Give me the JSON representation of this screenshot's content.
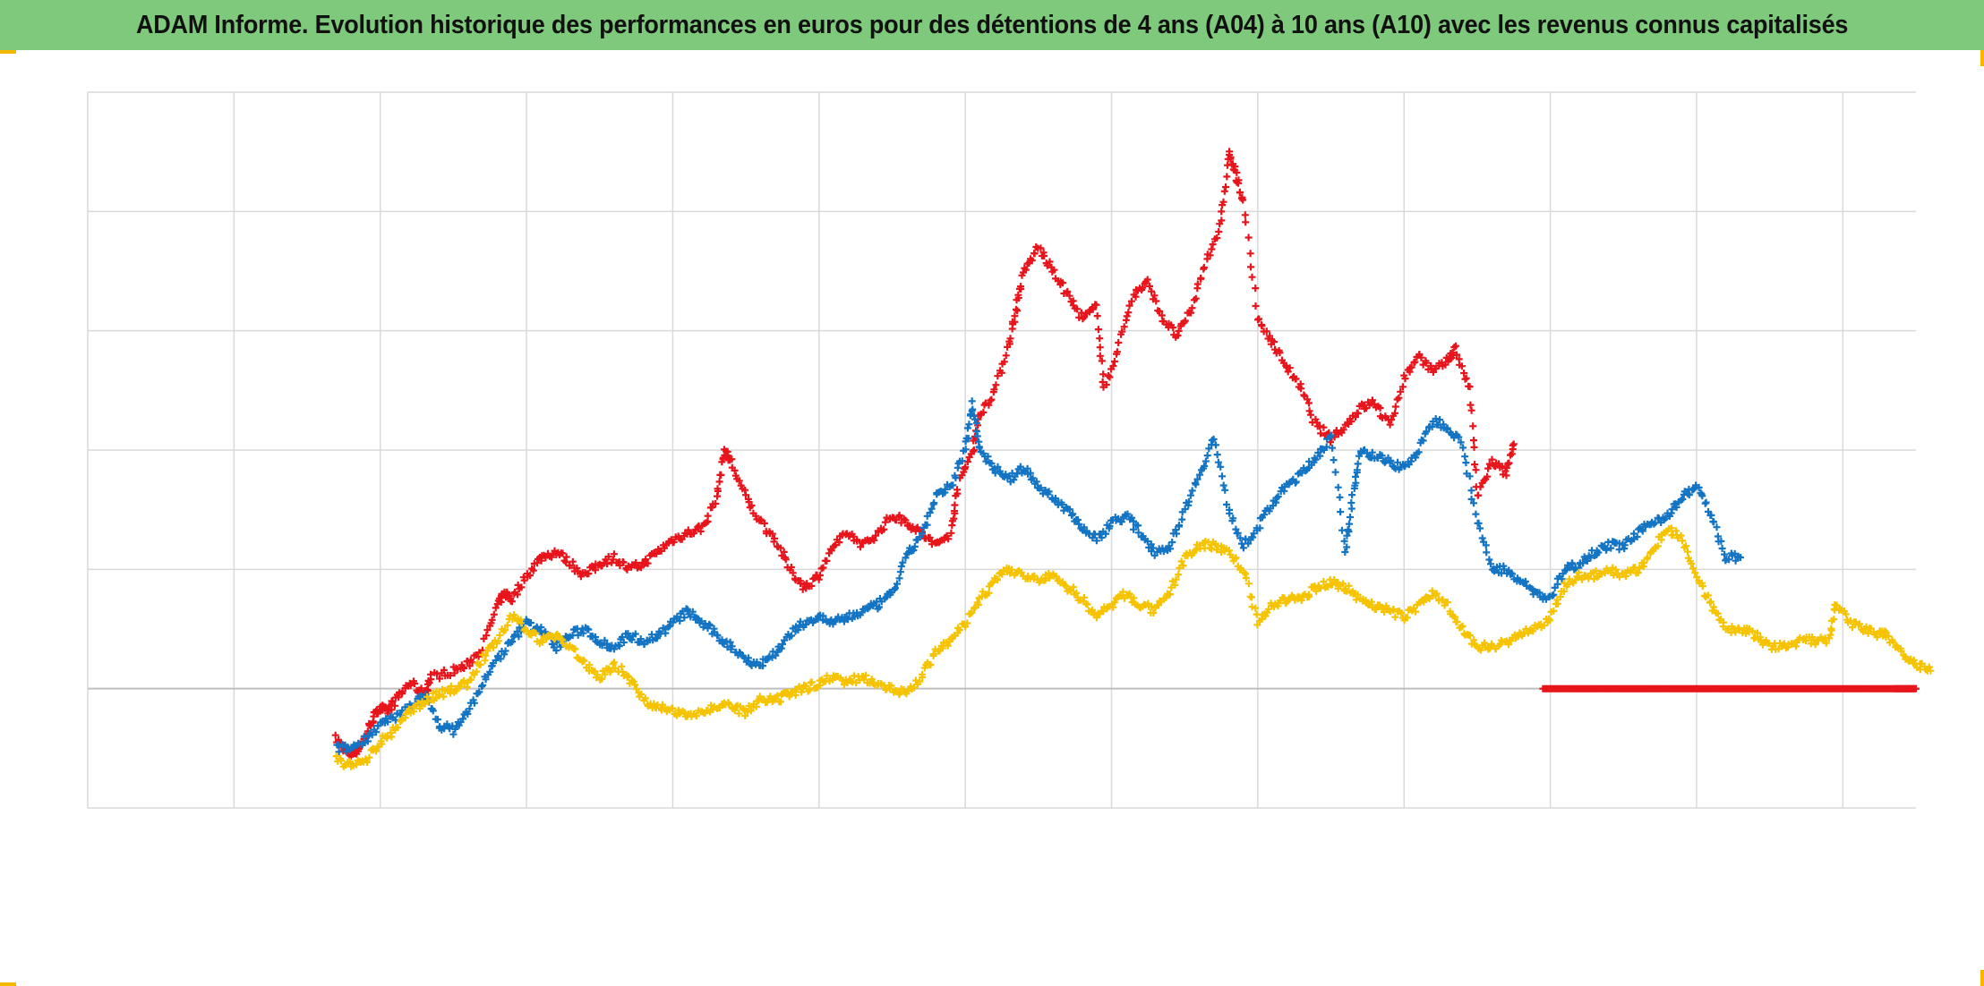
{
  "title": "ADAM Informe. Evolution historique des performances en euros pour des détentions de 4 ans (A04) à 10 ans (A10) avec les revenus connus capitalisés",
  "colors": {
    "title_bg": "#7ec97b",
    "grid": "#d9d9d9",
    "axis": "#bfbfbf",
    "frame": "#f2b800"
  },
  "chart_data": {
    "type": "scatter",
    "marker": "plus",
    "grid": true,
    "legend": "none",
    "title": "ADAM Informe. Evolution historique des performances en euros pour des détentions de 4 ans (A04) à 10 ans (A10) avec les revenus connus capitalisés",
    "xlabel": "",
    "ylabel": "",
    "xlim": [
      0,
      12.5
    ],
    "ylim": [
      -1,
      5
    ],
    "x_gridlines": 12,
    "y_gridlines": 6,
    "series": [
      {
        "color": "#e8141c",
        "points": [
          [
            1.7,
            -0.42
          ],
          [
            1.75,
            -0.5
          ],
          [
            1.8,
            -0.55
          ],
          [
            1.85,
            -0.5
          ],
          [
            1.9,
            -0.4
          ],
          [
            1.95,
            -0.25
          ],
          [
            2.0,
            -0.15
          ],
          [
            2.05,
            -0.2
          ],
          [
            2.1,
            -0.1
          ],
          [
            2.2,
            0.05
          ],
          [
            2.3,
            -0.05
          ],
          [
            2.35,
            0.1
          ],
          [
            2.5,
            0.15
          ],
          [
            2.6,
            0.2
          ],
          [
            2.7,
            0.35
          ],
          [
            2.8,
            0.7
          ],
          [
            2.85,
            0.8
          ],
          [
            2.9,
            0.75
          ],
          [
            3.0,
            0.95
          ],
          [
            3.1,
            1.1
          ],
          [
            3.2,
            1.15
          ],
          [
            3.3,
            1.05
          ],
          [
            3.4,
            0.95
          ],
          [
            3.5,
            1.05
          ],
          [
            3.6,
            1.1
          ],
          [
            3.7,
            1.0
          ],
          [
            3.8,
            1.05
          ],
          [
            3.9,
            1.15
          ],
          [
            4.0,
            1.25
          ],
          [
            4.1,
            1.3
          ],
          [
            4.2,
            1.35
          ],
          [
            4.3,
            1.6
          ],
          [
            4.35,
            2.0
          ],
          [
            4.4,
            1.9
          ],
          [
            4.5,
            1.6
          ],
          [
            4.6,
            1.4
          ],
          [
            4.7,
            1.25
          ],
          [
            4.8,
            1.0
          ],
          [
            4.9,
            0.85
          ],
          [
            5.0,
            0.95
          ],
          [
            5.1,
            1.2
          ],
          [
            5.2,
            1.3
          ],
          [
            5.3,
            1.2
          ],
          [
            5.4,
            1.3
          ],
          [
            5.5,
            1.45
          ],
          [
            5.6,
            1.4
          ],
          [
            5.7,
            1.3
          ],
          [
            5.8,
            1.2
          ],
          [
            5.9,
            1.3
          ],
          [
            5.95,
            1.7
          ],
          [
            6.05,
            2.0
          ],
          [
            6.1,
            2.3
          ],
          [
            6.2,
            2.5
          ],
          [
            6.3,
            2.9
          ],
          [
            6.35,
            3.2
          ],
          [
            6.4,
            3.5
          ],
          [
            6.5,
            3.7
          ],
          [
            6.6,
            3.5
          ],
          [
            6.7,
            3.3
          ],
          [
            6.8,
            3.1
          ],
          [
            6.9,
            3.2
          ],
          [
            6.95,
            2.5
          ],
          [
            7.05,
            2.9
          ],
          [
            7.15,
            3.3
          ],
          [
            7.25,
            3.4
          ],
          [
            7.35,
            3.1
          ],
          [
            7.45,
            2.95
          ],
          [
            7.55,
            3.2
          ],
          [
            7.65,
            3.6
          ],
          [
            7.75,
            3.9
          ],
          [
            7.8,
            4.5
          ],
          [
            7.85,
            4.3
          ],
          [
            7.9,
            4.1
          ],
          [
            8.0,
            3.1
          ],
          [
            8.1,
            2.9
          ],
          [
            8.2,
            2.7
          ],
          [
            8.3,
            2.5
          ],
          [
            8.4,
            2.2
          ],
          [
            8.5,
            2.1
          ],
          [
            8.6,
            2.2
          ],
          [
            8.7,
            2.35
          ],
          [
            8.8,
            2.4
          ],
          [
            8.9,
            2.2
          ],
          [
            9.0,
            2.6
          ],
          [
            9.1,
            2.8
          ],
          [
            9.2,
            2.65
          ],
          [
            9.3,
            2.75
          ],
          [
            9.35,
            2.85
          ],
          [
            9.45,
            2.5
          ],
          [
            9.5,
            1.6
          ],
          [
            9.6,
            1.9
          ],
          [
            9.7,
            1.8
          ],
          [
            9.75,
            2.05
          ]
        ]
      },
      {
        "color": "#1474c4",
        "points": [
          [
            1.7,
            -0.5
          ],
          [
            1.8,
            -0.5
          ],
          [
            1.9,
            -0.42
          ],
          [
            2.0,
            -0.3
          ],
          [
            2.1,
            -0.25
          ],
          [
            2.2,
            -0.15
          ],
          [
            2.3,
            -0.05
          ],
          [
            2.4,
            -0.3
          ],
          [
            2.5,
            -0.35
          ],
          [
            2.6,
            -0.2
          ],
          [
            2.7,
            0.05
          ],
          [
            2.8,
            0.25
          ],
          [
            2.9,
            0.4
          ],
          [
            3.0,
            0.55
          ],
          [
            3.1,
            0.5
          ],
          [
            3.2,
            0.35
          ],
          [
            3.3,
            0.45
          ],
          [
            3.4,
            0.5
          ],
          [
            3.5,
            0.4
          ],
          [
            3.6,
            0.35
          ],
          [
            3.7,
            0.45
          ],
          [
            3.8,
            0.4
          ],
          [
            3.9,
            0.45
          ],
          [
            4.0,
            0.55
          ],
          [
            4.1,
            0.65
          ],
          [
            4.2,
            0.55
          ],
          [
            4.3,
            0.45
          ],
          [
            4.4,
            0.35
          ],
          [
            4.5,
            0.25
          ],
          [
            4.6,
            0.2
          ],
          [
            4.7,
            0.3
          ],
          [
            4.8,
            0.45
          ],
          [
            4.9,
            0.55
          ],
          [
            5.0,
            0.6
          ],
          [
            5.1,
            0.55
          ],
          [
            5.2,
            0.6
          ],
          [
            5.3,
            0.65
          ],
          [
            5.4,
            0.7
          ],
          [
            5.5,
            0.8
          ],
          [
            5.6,
            1.1
          ],
          [
            5.7,
            1.3
          ],
          [
            5.8,
            1.6
          ],
          [
            5.9,
            1.7
          ],
          [
            6.0,
            2.0
          ],
          [
            6.05,
            2.4
          ],
          [
            6.1,
            2.0
          ],
          [
            6.2,
            1.85
          ],
          [
            6.3,
            1.75
          ],
          [
            6.4,
            1.85
          ],
          [
            6.5,
            1.7
          ],
          [
            6.6,
            1.6
          ],
          [
            6.7,
            1.5
          ],
          [
            6.8,
            1.35
          ],
          [
            6.9,
            1.25
          ],
          [
            7.0,
            1.4
          ],
          [
            7.1,
            1.45
          ],
          [
            7.2,
            1.3
          ],
          [
            7.3,
            1.15
          ],
          [
            7.4,
            1.2
          ],
          [
            7.5,
            1.5
          ],
          [
            7.6,
            1.8
          ],
          [
            7.7,
            2.1
          ],
          [
            7.8,
            1.5
          ],
          [
            7.9,
            1.2
          ],
          [
            8.0,
            1.35
          ],
          [
            8.1,
            1.55
          ],
          [
            8.2,
            1.7
          ],
          [
            8.3,
            1.8
          ],
          [
            8.4,
            1.95
          ],
          [
            8.5,
            2.1
          ],
          [
            8.6,
            1.15
          ],
          [
            8.65,
            1.6
          ],
          [
            8.7,
            2.0
          ],
          [
            8.8,
            1.95
          ],
          [
            8.9,
            1.9
          ],
          [
            9.0,
            1.85
          ],
          [
            9.1,
            2.0
          ],
          [
            9.2,
            2.25
          ],
          [
            9.3,
            2.2
          ],
          [
            9.4,
            2.05
          ],
          [
            9.5,
            1.4
          ],
          [
            9.6,
            1.0
          ],
          [
            9.7,
            1.0
          ],
          [
            9.8,
            0.9
          ],
          [
            9.9,
            0.8
          ],
          [
            10.0,
            0.75
          ],
          [
            10.1,
            1.0
          ],
          [
            10.2,
            1.05
          ],
          [
            10.3,
            1.15
          ],
          [
            10.4,
            1.2
          ],
          [
            10.5,
            1.2
          ],
          [
            10.6,
            1.3
          ],
          [
            10.7,
            1.4
          ],
          [
            10.8,
            1.45
          ],
          [
            10.9,
            1.6
          ],
          [
            11.0,
            1.7
          ],
          [
            11.1,
            1.45
          ],
          [
            11.2,
            1.1
          ],
          [
            11.3,
            1.1
          ]
        ]
      },
      {
        "color": "#f5c300",
        "points": [
          [
            1.7,
            -0.6
          ],
          [
            1.8,
            -0.65
          ],
          [
            1.9,
            -0.6
          ],
          [
            2.0,
            -0.45
          ],
          [
            2.1,
            -0.35
          ],
          [
            2.2,
            -0.2
          ],
          [
            2.3,
            -0.1
          ],
          [
            2.4,
            -0.05
          ],
          [
            2.5,
            0.0
          ],
          [
            2.6,
            0.05
          ],
          [
            2.7,
            0.25
          ],
          [
            2.8,
            0.4
          ],
          [
            2.9,
            0.6
          ],
          [
            3.0,
            0.5
          ],
          [
            3.1,
            0.4
          ],
          [
            3.2,
            0.45
          ],
          [
            3.3,
            0.35
          ],
          [
            3.4,
            0.2
          ],
          [
            3.5,
            0.1
          ],
          [
            3.6,
            0.2
          ],
          [
            3.7,
            0.1
          ],
          [
            3.8,
            -0.1
          ],
          [
            3.9,
            -0.15
          ],
          [
            4.0,
            -0.2
          ],
          [
            4.1,
            -0.2
          ],
          [
            4.2,
            -0.2
          ],
          [
            4.3,
            -0.15
          ],
          [
            4.4,
            -0.15
          ],
          [
            4.5,
            -0.2
          ],
          [
            4.6,
            -0.1
          ],
          [
            4.7,
            -0.1
          ],
          [
            4.8,
            -0.05
          ],
          [
            4.9,
            0.0
          ],
          [
            5.0,
            0.05
          ],
          [
            5.1,
            0.1
          ],
          [
            5.2,
            0.05
          ],
          [
            5.3,
            0.1
          ],
          [
            5.4,
            0.05
          ],
          [
            5.5,
            0.0
          ],
          [
            5.6,
            -0.05
          ],
          [
            5.7,
            0.1
          ],
          [
            5.8,
            0.3
          ],
          [
            5.9,
            0.4
          ],
          [
            6.0,
            0.55
          ],
          [
            6.1,
            0.75
          ],
          [
            6.2,
            0.9
          ],
          [
            6.3,
            1.0
          ],
          [
            6.4,
            0.95
          ],
          [
            6.5,
            0.9
          ],
          [
            6.6,
            0.95
          ],
          [
            6.7,
            0.85
          ],
          [
            6.8,
            0.75
          ],
          [
            6.9,
            0.6
          ],
          [
            7.0,
            0.7
          ],
          [
            7.1,
            0.8
          ],
          [
            7.2,
            0.7
          ],
          [
            7.3,
            0.65
          ],
          [
            7.4,
            0.8
          ],
          [
            7.5,
            1.1
          ],
          [
            7.6,
            1.2
          ],
          [
            7.7,
            1.2
          ],
          [
            7.8,
            1.15
          ],
          [
            7.9,
            1.0
          ],
          [
            8.0,
            0.55
          ],
          [
            8.1,
            0.7
          ],
          [
            8.2,
            0.75
          ],
          [
            8.3,
            0.75
          ],
          [
            8.4,
            0.85
          ],
          [
            8.5,
            0.9
          ],
          [
            8.6,
            0.85
          ],
          [
            8.7,
            0.75
          ],
          [
            8.8,
            0.7
          ],
          [
            8.9,
            0.65
          ],
          [
            9.0,
            0.6
          ],
          [
            9.1,
            0.7
          ],
          [
            9.2,
            0.8
          ],
          [
            9.3,
            0.7
          ],
          [
            9.4,
            0.5
          ],
          [
            9.5,
            0.35
          ],
          [
            9.6,
            0.35
          ],
          [
            9.7,
            0.4
          ],
          [
            9.8,
            0.45
          ],
          [
            9.9,
            0.5
          ],
          [
            10.0,
            0.6
          ],
          [
            10.1,
            0.85
          ],
          [
            10.2,
            0.95
          ],
          [
            10.3,
            0.95
          ],
          [
            10.4,
            1.0
          ],
          [
            10.5,
            0.95
          ],
          [
            10.6,
            1.0
          ],
          [
            10.7,
            1.15
          ],
          [
            10.8,
            1.35
          ],
          [
            10.9,
            1.25
          ],
          [
            11.0,
            0.95
          ],
          [
            11.1,
            0.7
          ],
          [
            11.2,
            0.5
          ],
          [
            11.3,
            0.5
          ],
          [
            11.4,
            0.45
          ],
          [
            11.5,
            0.35
          ],
          [
            11.6,
            0.35
          ],
          [
            11.7,
            0.4
          ],
          [
            11.8,
            0.4
          ],
          [
            11.9,
            0.4
          ],
          [
            11.95,
            0.7
          ],
          [
            12.05,
            0.55
          ],
          [
            12.15,
            0.5
          ],
          [
            12.25,
            0.45
          ],
          [
            12.3,
            0.45
          ],
          [
            12.4,
            0.3
          ],
          [
            12.5,
            0.2
          ],
          [
            12.6,
            0.15
          ]
        ]
      },
      {
        "color": "#e8141c",
        "points": [
          [
            9.95,
            0.0
          ],
          [
            10.25,
            0.0
          ],
          [
            10.55,
            0.0
          ],
          [
            10.85,
            0.0
          ],
          [
            11.15,
            0.0
          ],
          [
            11.45,
            0.0
          ],
          [
            11.75,
            0.0
          ],
          [
            12.05,
            0.0
          ],
          [
            12.35,
            0.0
          ],
          [
            12.5,
            0.0
          ]
        ]
      }
    ]
  }
}
